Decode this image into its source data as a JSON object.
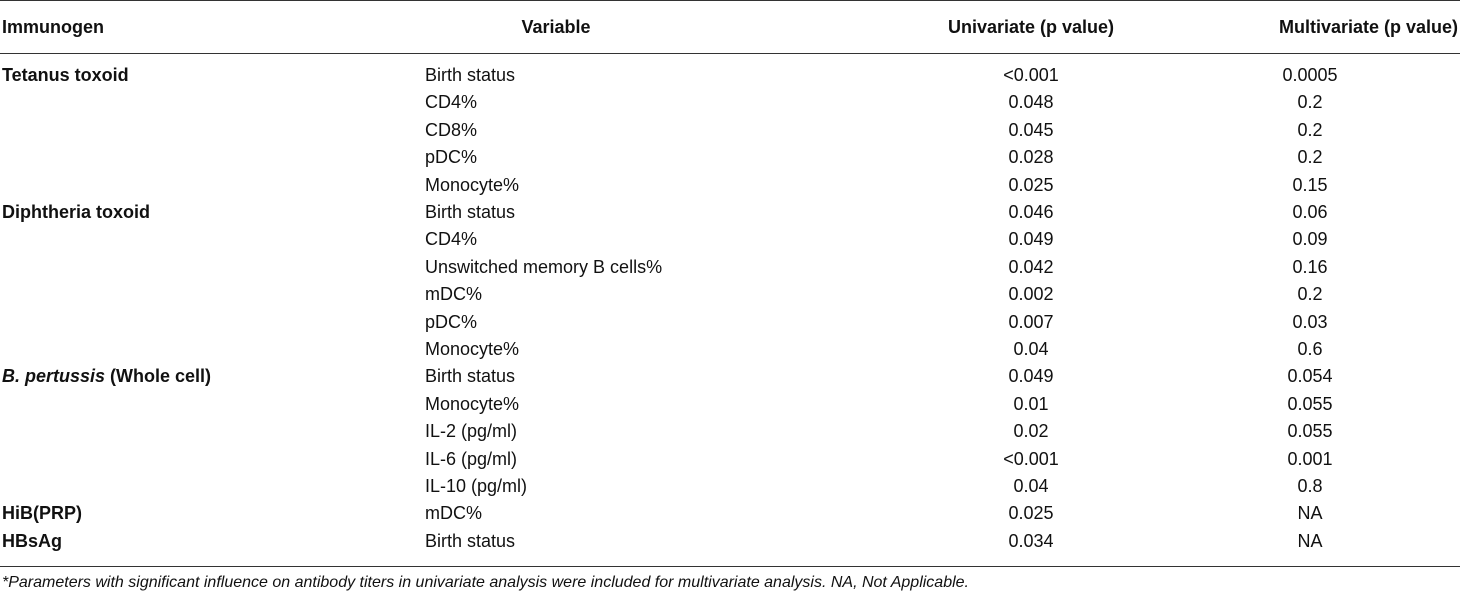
{
  "headers": {
    "immunogen": "Immunogen",
    "variable": "Variable",
    "univariate": "Univariate (p value)",
    "multivariate": "Multivariate (p value)"
  },
  "rows": [
    {
      "immunogen": "Tetanus toxoid",
      "variable": "Birth status",
      "univariate": "<0.001",
      "multivariate": "0.0005"
    },
    {
      "immunogen": "",
      "variable": "CD4%",
      "univariate": "0.048",
      "multivariate": "0.2"
    },
    {
      "immunogen": "",
      "variable": "CD8%",
      "univariate": "0.045",
      "multivariate": "0.2"
    },
    {
      "immunogen": "",
      "variable": "pDC%",
      "univariate": "0.028",
      "multivariate": "0.2"
    },
    {
      "immunogen": "",
      "variable": "Monocyte%",
      "univariate": "0.025",
      "multivariate": "0.15"
    },
    {
      "immunogen": "Diphtheria toxoid",
      "variable": "Birth status",
      "univariate": "0.046",
      "multivariate": "0.06"
    },
    {
      "immunogen": "",
      "variable": "CD4%",
      "univariate": "0.049",
      "multivariate": "0.09"
    },
    {
      "immunogen": "",
      "variable": "Unswitched memory B cells%",
      "univariate": "0.042",
      "multivariate": "0.16"
    },
    {
      "immunogen": "",
      "variable": "mDC%",
      "univariate": "0.002",
      "multivariate": "0.2"
    },
    {
      "immunogen": "",
      "variable": "pDC%",
      "univariate": "0.007",
      "multivariate": "0.03"
    },
    {
      "immunogen": "",
      "variable": "Monocyte%",
      "univariate": "0.04",
      "multivariate": "0.6"
    },
    {
      "immunogen": "B. pertussis",
      "immunogen_suffix": " (Whole cell)",
      "variable": "Birth status",
      "univariate": "0.049",
      "multivariate": "0.054"
    },
    {
      "immunogen": "",
      "variable": "Monocyte%",
      "univariate": "0.01",
      "multivariate": "0.055"
    },
    {
      "immunogen": "",
      "variable": "IL-2 (pg/ml)",
      "univariate": "0.02",
      "multivariate": "0.055"
    },
    {
      "immunogen": "",
      "variable": "IL-6 (pg/ml)",
      "univariate": "<0.001",
      "multivariate": "0.001"
    },
    {
      "immunogen": "",
      "variable": "IL-10 (pg/ml)",
      "univariate": "0.04",
      "multivariate": "0.8"
    },
    {
      "immunogen": "HiB(PRP)",
      "variable": "mDC%",
      "univariate": "0.025",
      "multivariate": "NA"
    },
    {
      "immunogen": "HBsAg",
      "variable": "Birth status",
      "univariate": "0.034",
      "multivariate": "NA"
    }
  ],
  "footnote": "*Parameters with significant influence on antibody titers in univariate analysis were included for multivariate analysis. NA, Not Applicable."
}
